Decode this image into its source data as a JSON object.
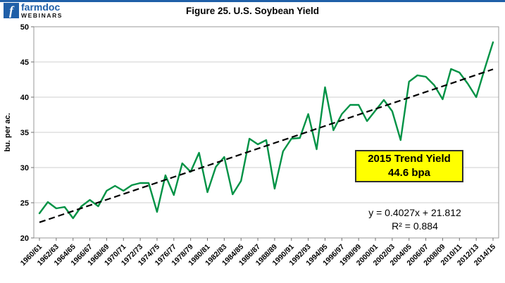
{
  "logo": {
    "mark": "f",
    "name": "farmdoc",
    "sub": "WEBINARS"
  },
  "title": "Figure 25. U.S. Soybean Yield",
  "annotation": {
    "line1": "2015 Trend Yield",
    "line2": "44.6 bpa"
  },
  "equation": {
    "line1": "y = 0.4027x + 21.812",
    "line2": "R² = 0.884"
  },
  "colors": {
    "series_green": "#009245",
    "trend_black": "#000000",
    "annotation_bg": "#ffff00",
    "logo_blue": "#1f5fa8",
    "grid_gray": "#cfcfcf",
    "border_gray": "#9a9a9a"
  },
  "chart_data": {
    "type": "line",
    "title": "Figure 25. U.S. Soybean Yield",
    "xlabel": "",
    "ylabel": "bu. per ac.",
    "ylim": [
      20,
      50
    ],
    "y_ticks": [
      20,
      25,
      30,
      35,
      40,
      45,
      50
    ],
    "grid": "horizontal",
    "legend": "none",
    "x_tick_labels": [
      "1960/61",
      "1962/63",
      "1964/65",
      "1966/67",
      "1968/69",
      "1970/71",
      "1972/73",
      "1974/75",
      "1976/77",
      "1978/79",
      "1980/81",
      "1982/83",
      "1984/85",
      "1986/87",
      "1988/89",
      "1990/91",
      "1992/93",
      "1994/95",
      "1996/97",
      "1998/99",
      "2000/01",
      "2002/03",
      "2004/05",
      "2006/07",
      "2008/09",
      "2010/11",
      "2012/13",
      "2014/15"
    ],
    "years": [
      1960,
      1961,
      1962,
      1963,
      1964,
      1965,
      1966,
      1967,
      1968,
      1969,
      1970,
      1971,
      1972,
      1973,
      1974,
      1975,
      1976,
      1977,
      1978,
      1979,
      1980,
      1981,
      1982,
      1983,
      1984,
      1985,
      1986,
      1987,
      1988,
      1989,
      1990,
      1991,
      1992,
      1993,
      1994,
      1995,
      1996,
      1997,
      1998,
      1999,
      2000,
      2001,
      2002,
      2003,
      2004,
      2005,
      2006,
      2007,
      2008,
      2009,
      2010,
      2011,
      2012,
      2013,
      2014
    ],
    "series": [
      {
        "name": "U.S. soybean yield (bu. per ac.)",
        "values": [
          23.5,
          25.1,
          24.2,
          24.4,
          22.8,
          24.5,
          25.4,
          24.5,
          26.7,
          27.4,
          26.7,
          27.5,
          27.8,
          27.8,
          23.7,
          28.9,
          26.1,
          30.6,
          29.4,
          32.1,
          26.5,
          30.1,
          31.5,
          26.2,
          28.1,
          34.1,
          33.3,
          33.9,
          27.0,
          32.3,
          34.1,
          34.2,
          37.6,
          32.6,
          41.4,
          35.3,
          37.6,
          38.9,
          38.9,
          36.6,
          38.1,
          39.6,
          38.0,
          33.9,
          42.2,
          43.1,
          42.9,
          41.7,
          39.7,
          44.0,
          43.5,
          41.9,
          40.0,
          44.0,
          47.8
        ]
      }
    ],
    "trend": {
      "style": "dashed",
      "slope": 0.4027,
      "intercept": 21.812,
      "r2": 0.884,
      "x_origin": "x = 1 at 1960/61",
      "trend_yield_2015": 44.6
    }
  }
}
